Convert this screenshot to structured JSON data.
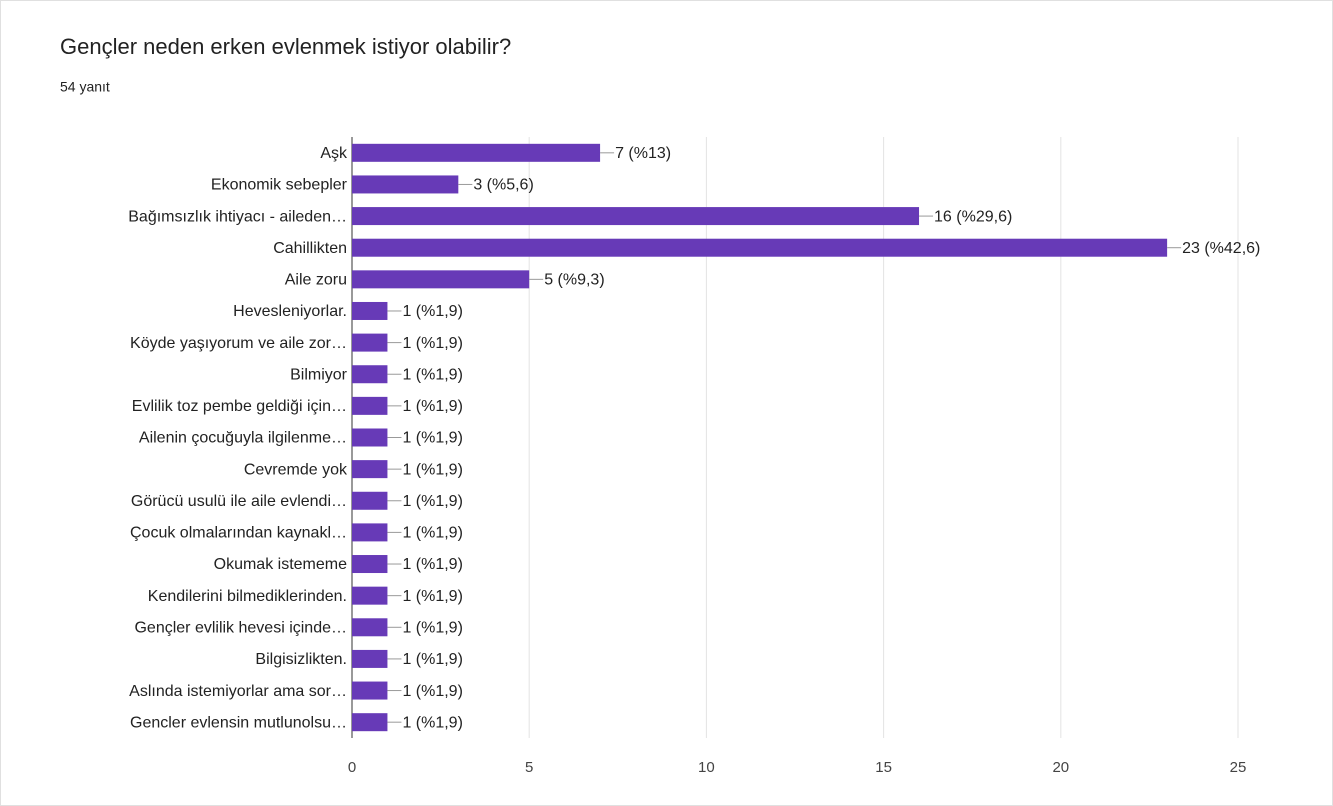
{
  "chart_data": {
    "type": "bar",
    "orientation": "horizontal",
    "title": "Gençler neden erken evlenmek istiyor olabilir?",
    "subtitle": "54 yanıt",
    "categories": [
      "Aşk",
      "Ekonomik sebepler",
      "Bağımsızlık ihtiyacı - aileden…",
      "Cahillikten",
      "Aile zoru",
      "Hevesleniyorlar.",
      "Köyde yaşıyorum ve aile zor…",
      "Bilmiyor",
      "Evlilik toz pembe geldiği için…",
      "Ailenin çocuğuyla ilgilenme…",
      "Cevremde yok",
      "Görücü usulü ile aile evlendi…",
      "Çocuk olmalarından kaynakl…",
      "Okumak istememe",
      "Kendilerini bilmediklerinden.",
      "Gençler evlilik hevesi içinde…",
      "Bilgisizlikten.",
      "Aslında istemiyorlar ama sor…",
      "Gencler evlensin mutlunolsu…"
    ],
    "values": [
      7,
      3,
      16,
      23,
      5,
      1,
      1,
      1,
      1,
      1,
      1,
      1,
      1,
      1,
      1,
      1,
      1,
      1,
      1
    ],
    "value_labels": [
      "7 (%13)",
      "3 (%5,6)",
      "16 (%29,6)",
      "23 (%42,6)",
      "5 (%9,3)",
      "1 (%1,9)",
      "1 (%1,9)",
      "1 (%1,9)",
      "1 (%1,9)",
      "1 (%1,9)",
      "1 (%1,9)",
      "1 (%1,9)",
      "1 (%1,9)",
      "1 (%1,9)",
      "1 (%1,9)",
      "1 (%1,9)",
      "1 (%1,9)",
      "1 (%1,9)",
      "1 (%1,9)"
    ],
    "color": "#673ab7",
    "xlim": [
      0,
      25
    ],
    "xticks": [
      0,
      5,
      10,
      15,
      20,
      25
    ],
    "grid": true
  }
}
